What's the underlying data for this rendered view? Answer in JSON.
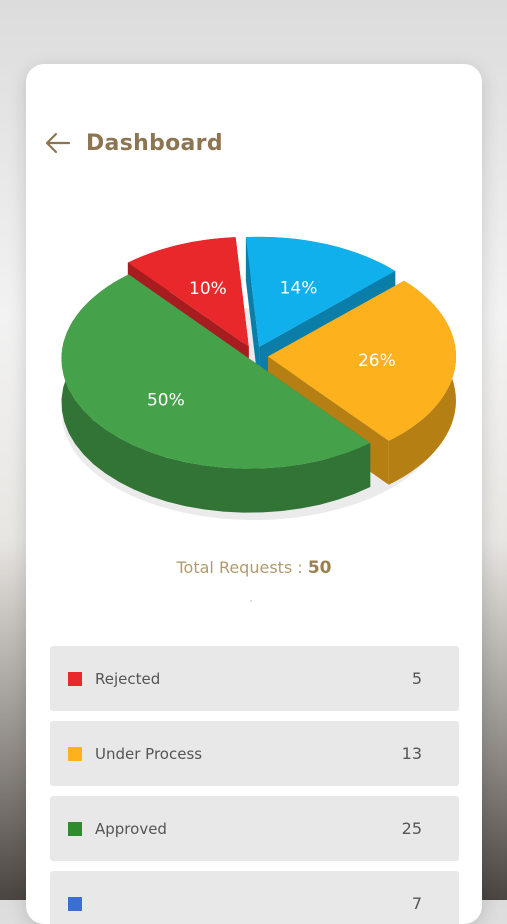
{
  "header": {
    "title": "Dashboard",
    "back_icon": "arrow-left-icon"
  },
  "summary": {
    "label": "Total Requests : ",
    "value": "50"
  },
  "chart_data": {
    "type": "pie",
    "slices": [
      {
        "label": "Rejected",
        "value": 10,
        "display": "10%",
        "color": "#e8282a"
      },
      {
        "label": "",
        "value": 14,
        "display": "14%",
        "color": "#0fb0ec"
      },
      {
        "label": "Under Process",
        "value": 26,
        "display": "26%",
        "color": "#fcb11d"
      },
      {
        "label": "Approved",
        "value": 50,
        "display": "50%",
        "color": "#46a24a"
      }
    ]
  },
  "statuses": [
    {
      "label": "Rejected",
      "count": "5",
      "color": "#e8282a"
    },
    {
      "label": "Under Process",
      "count": "13",
      "color": "#fcb11d"
    },
    {
      "label": "Approved",
      "count": "25",
      "color": "#2e8b2e"
    },
    {
      "label": "",
      "count": "7",
      "color": "#3b6fd4"
    }
  ]
}
